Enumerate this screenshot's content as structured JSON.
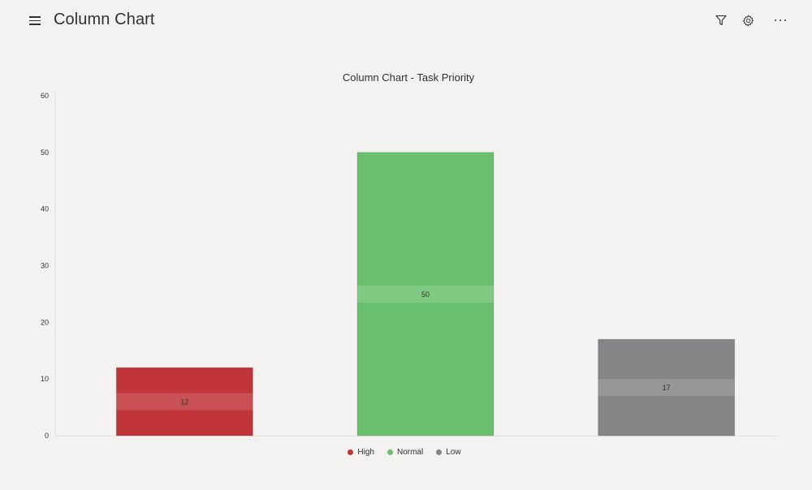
{
  "header": {
    "title": "Column Chart",
    "icons": [
      "hamburger-menu-icon",
      "filter-icon",
      "gear-icon",
      "more-icon"
    ]
  },
  "chart_data": {
    "type": "bar",
    "title": "Column Chart - Task Priority",
    "categories": [
      "High",
      "Normal",
      "Low"
    ],
    "values": [
      12,
      50,
      17
    ],
    "colors": [
      "#c13438",
      "#6bc06f",
      "#848587"
    ],
    "ylim": [
      0,
      60
    ],
    "yticks": [
      0,
      10,
      20,
      30,
      40,
      50,
      60
    ],
    "xlabel": "",
    "ylabel": "",
    "legend_position": "bottom",
    "grid": false,
    "data_labels": [
      "12",
      "50",
      "17"
    ]
  },
  "legend": [
    {
      "label": "High",
      "color": "#c13438"
    },
    {
      "label": "Normal",
      "color": "#6bc06f"
    },
    {
      "label": "Low",
      "color": "#848587"
    }
  ]
}
